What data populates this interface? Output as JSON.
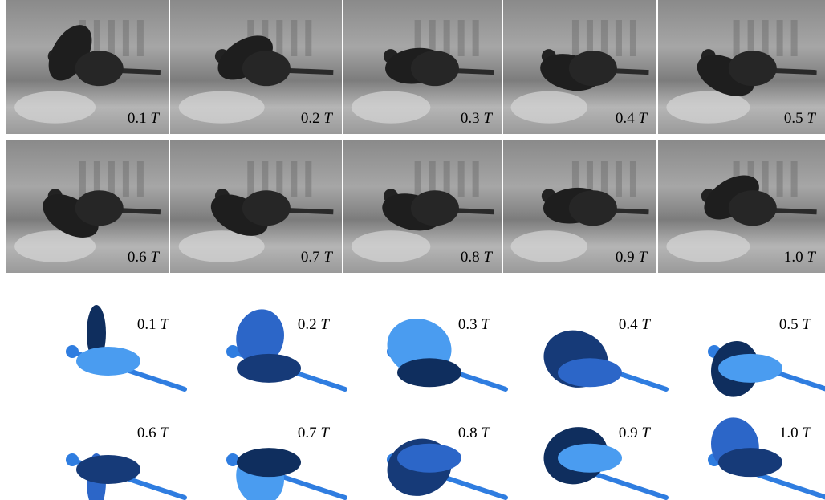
{
  "photo_frames": [
    {
      "label": "0.1",
      "unit": "T"
    },
    {
      "label": "0.2",
      "unit": "T"
    },
    {
      "label": "0.3",
      "unit": "T"
    },
    {
      "label": "0.4",
      "unit": "T"
    },
    {
      "label": "0.5",
      "unit": "T"
    },
    {
      "label": "0.6",
      "unit": "T"
    },
    {
      "label": "0.7",
      "unit": "T"
    },
    {
      "label": "0.8",
      "unit": "T"
    },
    {
      "label": "0.9",
      "unit": "T"
    },
    {
      "label": "1.0",
      "unit": "T"
    }
  ],
  "model_frames": [
    {
      "label": "0.1",
      "unit": "T"
    },
    {
      "label": "0.2",
      "unit": "T"
    },
    {
      "label": "0.3",
      "unit": "T"
    },
    {
      "label": "0.4",
      "unit": "T"
    },
    {
      "label": "0.5",
      "unit": "T"
    },
    {
      "label": "0.6",
      "unit": "T"
    },
    {
      "label": "0.7",
      "unit": "T"
    },
    {
      "label": "0.8",
      "unit": "T"
    },
    {
      "label": "0.9",
      "unit": "T"
    },
    {
      "label": "1.0",
      "unit": "T"
    }
  ]
}
